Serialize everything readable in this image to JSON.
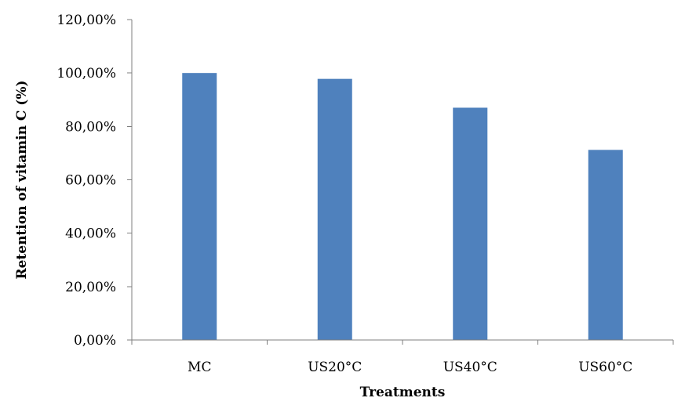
{
  "chart_data": {
    "type": "bar",
    "categories": [
      "MC",
      "US20°C",
      "US40°C",
      "US60°C"
    ],
    "values": [
      100.0,
      97.8,
      87.0,
      71.2
    ],
    "y_tick_values": [
      0,
      20,
      40,
      60,
      80,
      100,
      120
    ],
    "y_tick_labels": [
      "0,00%",
      "20,00%",
      "40,00%",
      "60,00%",
      "80,00%",
      "100,00%",
      "120,00%"
    ],
    "ylim": [
      0,
      120
    ],
    "xlabel": "Treatments",
    "ylabel": "Retention  of vitamin  C (%)",
    "title": "",
    "bar_color": "#4F81BD",
    "grid": false,
    "legend": "none"
  }
}
